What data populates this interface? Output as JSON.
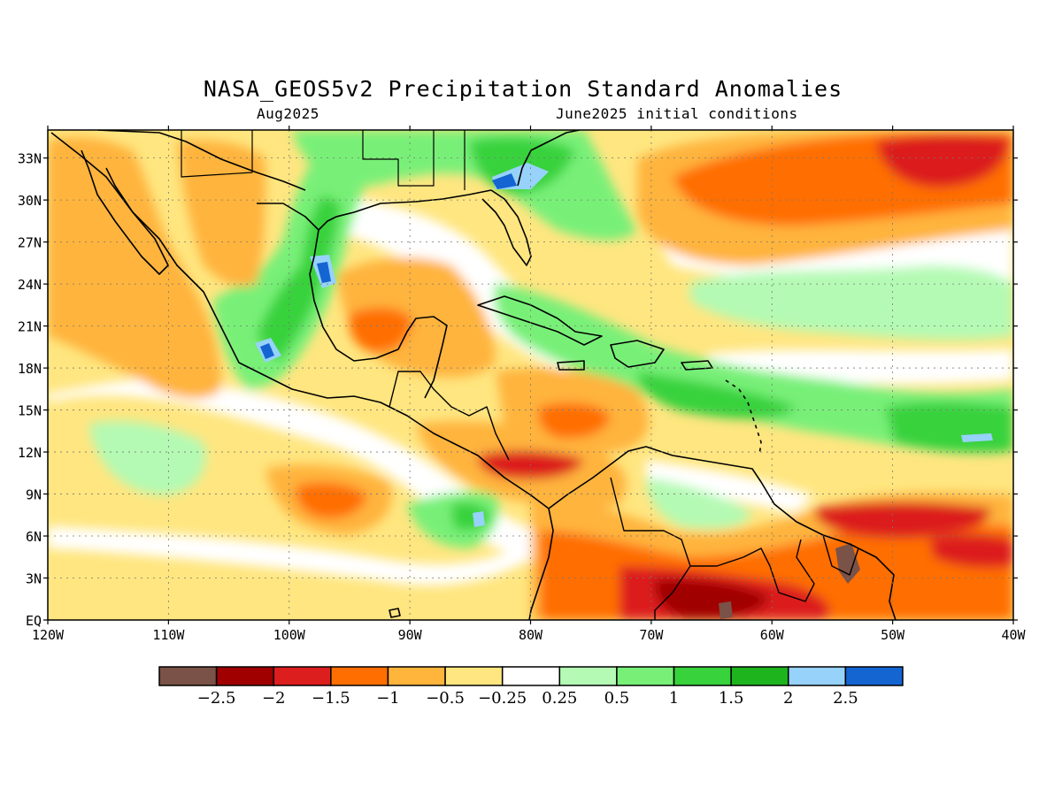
{
  "title": "NASA_GEOS5v2 Precipitation Standard Anomalies",
  "subtitle_left": "Aug2025",
  "subtitle_right": "June2025 initial conditions",
  "map": {
    "lon_range": [
      -120,
      -40
    ],
    "lat_range": [
      0,
      35
    ],
    "lon_ticks": [
      {
        "value": -120,
        "label": "120W"
      },
      {
        "value": -110,
        "label": "110W"
      },
      {
        "value": -100,
        "label": "100W"
      },
      {
        "value": -90,
        "label": "90W"
      },
      {
        "value": -80,
        "label": "80W"
      },
      {
        "value": -70,
        "label": "70W"
      },
      {
        "value": -60,
        "label": "60W"
      },
      {
        "value": -50,
        "label": "50W"
      },
      {
        "value": -40,
        "label": "40W"
      }
    ],
    "lat_ticks": [
      {
        "value": 0,
        "label": "EQ"
      },
      {
        "value": 3,
        "label": "3N"
      },
      {
        "value": 6,
        "label": "6N"
      },
      {
        "value": 9,
        "label": "9N"
      },
      {
        "value": 12,
        "label": "12N"
      },
      {
        "value": 15,
        "label": "15N"
      },
      {
        "value": 18,
        "label": "18N"
      },
      {
        "value": 21,
        "label": "21N"
      },
      {
        "value": 24,
        "label": "24N"
      },
      {
        "value": 27,
        "label": "27N"
      },
      {
        "value": 30,
        "label": "30N"
      },
      {
        "value": 33,
        "label": "33N"
      }
    ],
    "grid": true,
    "background_color": "#ffe680"
  },
  "colorbar": {
    "colors": [
      "#7a5247",
      "#a00000",
      "#dc1e1e",
      "#ff6e00",
      "#ffb43c",
      "#ffe680",
      "#ffffff",
      "#b4fab4",
      "#78f078",
      "#37d23c",
      "#1eb41e",
      "#96d2fa",
      "#1464d2"
    ],
    "labels": [
      "-2.5",
      "-2",
      "-1.5",
      "-1",
      "-0.5",
      "-0.25",
      "0.25",
      "0.5",
      "1",
      "1.5",
      "2",
      "2.5"
    ]
  },
  "anomaly_regions": [
    {
      "category": "-1",
      "lon": [
        -115.5,
        -108
      ],
      "lat": [
        17.5,
        24
      ]
    },
    {
      "category": "-1",
      "lon": [
        -93,
        -87
      ],
      "lat": [
        18.5,
        22
      ]
    },
    {
      "category": "-1.5",
      "lon": [
        -82,
        -72
      ],
      "lat": [
        10,
        12
      ]
    },
    {
      "category": "-1.5",
      "lon": [
        -96,
        -91
      ],
      "lat": [
        6.5,
        8.5
      ]
    },
    {
      "category": "-1",
      "lon": [
        -78,
        -70
      ],
      "lat": [
        12.5,
        15.5
      ]
    },
    {
      "category": "-1.5",
      "lon": [
        -64,
        -40
      ],
      "lat": [
        30,
        35
      ]
    },
    {
      "category": "-1.5",
      "lon": [
        -50,
        -40
      ],
      "lat": [
        4,
        7
      ]
    },
    {
      "category": "-2",
      "lon": [
        -73,
        -58
      ],
      "lat": [
        0,
        4
      ]
    },
    {
      "category": "1.5",
      "lon": [
        -102,
        -95
      ],
      "lat": [
        17,
        27
      ]
    },
    {
      "category": "2.5",
      "lon": [
        -98,
        -96
      ],
      "lat": [
        24,
        26
      ]
    },
    {
      "category": "2.5",
      "lon": [
        -103,
        -101
      ],
      "lat": [
        18.5,
        20
      ]
    },
    {
      "category": "2.5",
      "lon": [
        -84,
        -80
      ],
      "lat": [
        30.5,
        32.5
      ]
    },
    {
      "category": "1.5",
      "lon": [
        -48,
        -40
      ],
      "lat": [
        12,
        14
      ]
    },
    {
      "category": "1",
      "lon": [
        -85,
        -82
      ],
      "lat": [
        6,
        8.5
      ]
    },
    {
      "category": "-2.5",
      "lon": [
        -55,
        -53
      ],
      "lat": [
        3,
        5
      ]
    }
  ]
}
